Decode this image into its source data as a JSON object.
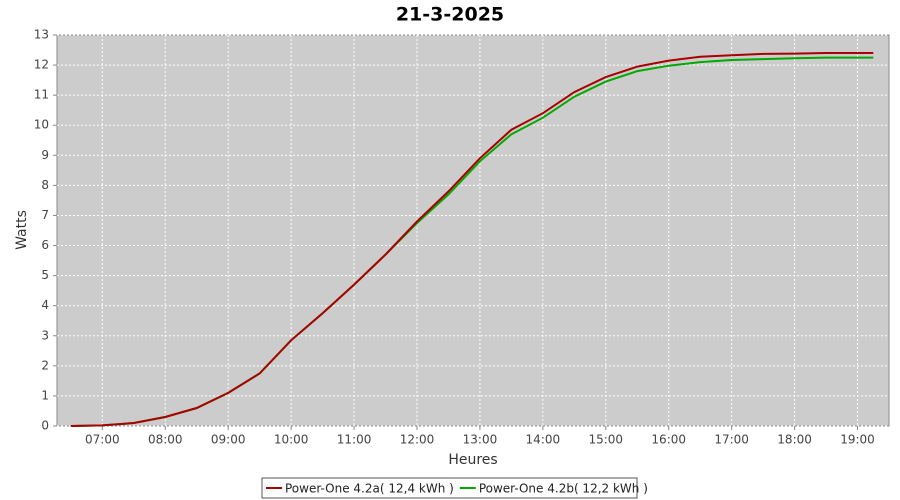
{
  "chart_data": {
    "type": "line",
    "title": "21-3-2025",
    "x_label": "Heures",
    "y_label": "Watts",
    "x": [
      6.5,
      7,
      7.5,
      8,
      8.5,
      9,
      9.5,
      10,
      10.5,
      11,
      11.5,
      12,
      12.5,
      13,
      13.5,
      14,
      14.5,
      15,
      15.5,
      16,
      16.5,
      17,
      17.5,
      18,
      18.5,
      19,
      19.25
    ],
    "series": [
      {
        "name": "Power-One 4.2a( 12,4 kWh )",
        "color": "#aa0000",
        "values": [
          0,
          0.02,
          0.1,
          0.3,
          0.6,
          1.1,
          1.75,
          2.85,
          3.75,
          4.7,
          5.7,
          6.8,
          7.8,
          8.9,
          9.85,
          10.4,
          11.1,
          11.6,
          11.95,
          12.15,
          12.28,
          12.33,
          12.37,
          12.38,
          12.4,
          12.4,
          12.4
        ]
      },
      {
        "name": "Power-One 4.2b( 12,2 kWh )",
        "color": "#00aa00",
        "values": [
          0,
          0.02,
          0.1,
          0.3,
          0.6,
          1.1,
          1.75,
          2.85,
          3.75,
          4.7,
          5.7,
          6.75,
          7.7,
          8.8,
          9.7,
          10.25,
          10.95,
          11.45,
          11.8,
          11.98,
          12.1,
          12.17,
          12.2,
          12.23,
          12.25,
          12.25,
          12.25
        ]
      }
    ],
    "xlim": [
      6.28,
      19.5
    ],
    "xticks": [
      {
        "value": 7,
        "label": "07:00"
      },
      {
        "value": 8,
        "label": "08:00"
      },
      {
        "value": 9,
        "label": "09:00"
      },
      {
        "value": 10,
        "label": "10:00"
      },
      {
        "value": 11,
        "label": "11:00"
      },
      {
        "value": 12,
        "label": "12:00"
      },
      {
        "value": 13,
        "label": "13:00"
      },
      {
        "value": 14,
        "label": "14:00"
      },
      {
        "value": 15,
        "label": "15:00"
      },
      {
        "value": 16,
        "label": "16:00"
      },
      {
        "value": 17,
        "label": "17:00"
      },
      {
        "value": 18,
        "label": "18:00"
      },
      {
        "value": 19,
        "label": "19:00"
      }
    ],
    "ylim": [
      0,
      13
    ],
    "yticks": [
      0,
      1,
      2,
      3,
      4,
      5,
      6,
      7,
      8,
      9,
      10,
      11,
      12,
      13
    ],
    "grid": true,
    "legend": "bottom"
  }
}
